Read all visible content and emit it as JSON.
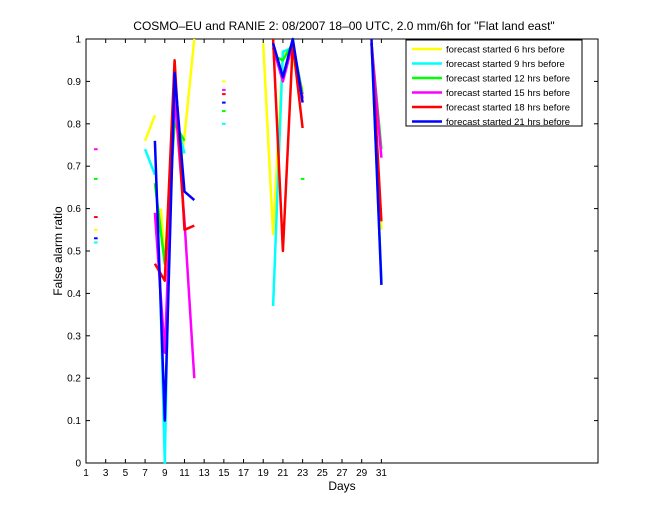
{
  "chart_data": {
    "type": "line",
    "title": "COSMO–EU and RANIE 2: 08/2007 18–00 UTC, 2.0 mm/6h for \"Flat land east\"",
    "xlabel": "Days",
    "ylabel": "False alarm ratio",
    "xlim": [
      1,
      53
    ],
    "ylim": [
      0,
      1
    ],
    "xticks": [
      1,
      3,
      5,
      7,
      9,
      11,
      13,
      15,
      17,
      19,
      21,
      23,
      25,
      27,
      29,
      31
    ],
    "yticks": [
      0,
      0.1,
      0.2,
      0.3,
      0.4,
      0.5,
      0.6,
      0.7,
      0.8,
      0.9,
      1
    ],
    "ytick_labels": [
      "0",
      "0.1",
      "0.2",
      "0.3",
      "0.4",
      "0.5",
      "0.6",
      "0.7",
      "0.8",
      "0.9",
      "1"
    ],
    "legend_position": "top-right",
    "grid": false,
    "series": [
      {
        "name": "forecast started 6 hrs before",
        "color": "#ffff00",
        "segments": [
          [
            [
              2,
              0.55
            ]
          ],
          [
            [
              7,
              0.76
            ],
            [
              8,
              0.82
            ]
          ],
          [
            [
              8.6,
              0.6
            ],
            [
              9,
              0.48
            ],
            [
              9.6,
              0.68
            ],
            [
              10,
              0.86
            ],
            [
              10.6,
              0.7
            ],
            [
              11,
              0.77
            ],
            [
              12,
              1.0
            ]
          ],
          [
            [
              15,
              0.9
            ]
          ],
          [
            [
              19,
              0.99
            ],
            [
              20,
              0.54
            ],
            [
              21,
              0.97
            ],
            [
              22,
              0.95
            ],
            [
              23,
              0.88
            ]
          ],
          [
            [
              30,
              0.99
            ],
            [
              31,
              0.55
            ]
          ]
        ]
      },
      {
        "name": "forecast started 9 hrs before",
        "color": "#00ffff",
        "segments": [
          [
            [
              2,
              0.52
            ]
          ],
          [
            [
              7,
              0.74
            ],
            [
              8,
              0.68
            ]
          ],
          [
            [
              8.5,
              0.45
            ],
            [
              9,
              0.0
            ],
            [
              9.5,
              0.6
            ],
            [
              10,
              0.82
            ],
            [
              11,
              0.73
            ]
          ],
          [
            [
              15,
              0.8
            ]
          ],
          [
            [
              20,
              0.37
            ],
            [
              21,
              0.97
            ],
            [
              22,
              0.98
            ],
            [
              23,
              0.87
            ]
          ],
          [
            [
              30,
              0.99
            ],
            [
              31,
              0.43
            ]
          ]
        ]
      },
      {
        "name": "forecast started 12 hrs before",
        "color": "#00ff00",
        "segments": [
          [
            [
              2,
              0.67
            ]
          ],
          [
            [
              8,
              0.66
            ],
            [
              9,
              0.47
            ],
            [
              10,
              0.8
            ],
            [
              11,
              0.76
            ]
          ],
          [
            [
              15,
              0.83
            ]
          ],
          [
            [
              20,
              0.96
            ],
            [
              21,
              0.95
            ],
            [
              22,
              0.99
            ],
            [
              23,
              0.87
            ]
          ],
          [
            [
              23,
              0.67
            ]
          ],
          [
            [
              30,
              0.99
            ],
            [
              31,
              0.74
            ]
          ]
        ]
      },
      {
        "name": "forecast started 15 hrs before",
        "color": "#ff00ff",
        "segments": [
          [
            [
              2,
              0.74
            ]
          ],
          [
            [
              8,
              0.59
            ],
            [
              9,
              0.26
            ],
            [
              10,
              0.87
            ],
            [
              11,
              0.57
            ],
            [
              12,
              0.2
            ]
          ],
          [
            [
              15,
              0.88
            ]
          ],
          [
            [
              20,
              0.98
            ],
            [
              21,
              0.9
            ],
            [
              22,
              0.99
            ],
            [
              23,
              0.86
            ]
          ],
          [
            [
              30,
              0.99
            ],
            [
              31,
              0.72
            ]
          ]
        ]
      },
      {
        "name": "forecast started 18 hrs before",
        "color": "#ff0000",
        "segments": [
          [
            [
              2,
              0.58
            ]
          ],
          [
            [
              8,
              0.47
            ],
            [
              9,
              0.43
            ],
            [
              10,
              0.95
            ],
            [
              11,
              0.55
            ],
            [
              12,
              0.56
            ]
          ],
          [
            [
              15,
              0.87
            ]
          ],
          [
            [
              20,
              1.0
            ],
            [
              21,
              0.5
            ],
            [
              22,
              0.99
            ],
            [
              23,
              0.79
            ]
          ],
          [
            [
              30,
              0.99
            ],
            [
              31,
              0.57
            ]
          ]
        ]
      },
      {
        "name": "forecast started 21 hrs before",
        "color": "#0000ff",
        "segments": [
          [
            [
              2,
              0.53
            ]
          ],
          [
            [
              8,
              0.76
            ],
            [
              9,
              0.1
            ],
            [
              10,
              0.92
            ],
            [
              11,
              0.64
            ],
            [
              12,
              0.62
            ]
          ],
          [
            [
              15,
              0.85
            ]
          ],
          [
            [
              20,
              0.99
            ],
            [
              21,
              0.91
            ],
            [
              22,
              1.0
            ],
            [
              23,
              0.85
            ]
          ],
          [
            [
              30,
              1.0
            ],
            [
              31,
              0.42
            ]
          ]
        ]
      }
    ]
  }
}
